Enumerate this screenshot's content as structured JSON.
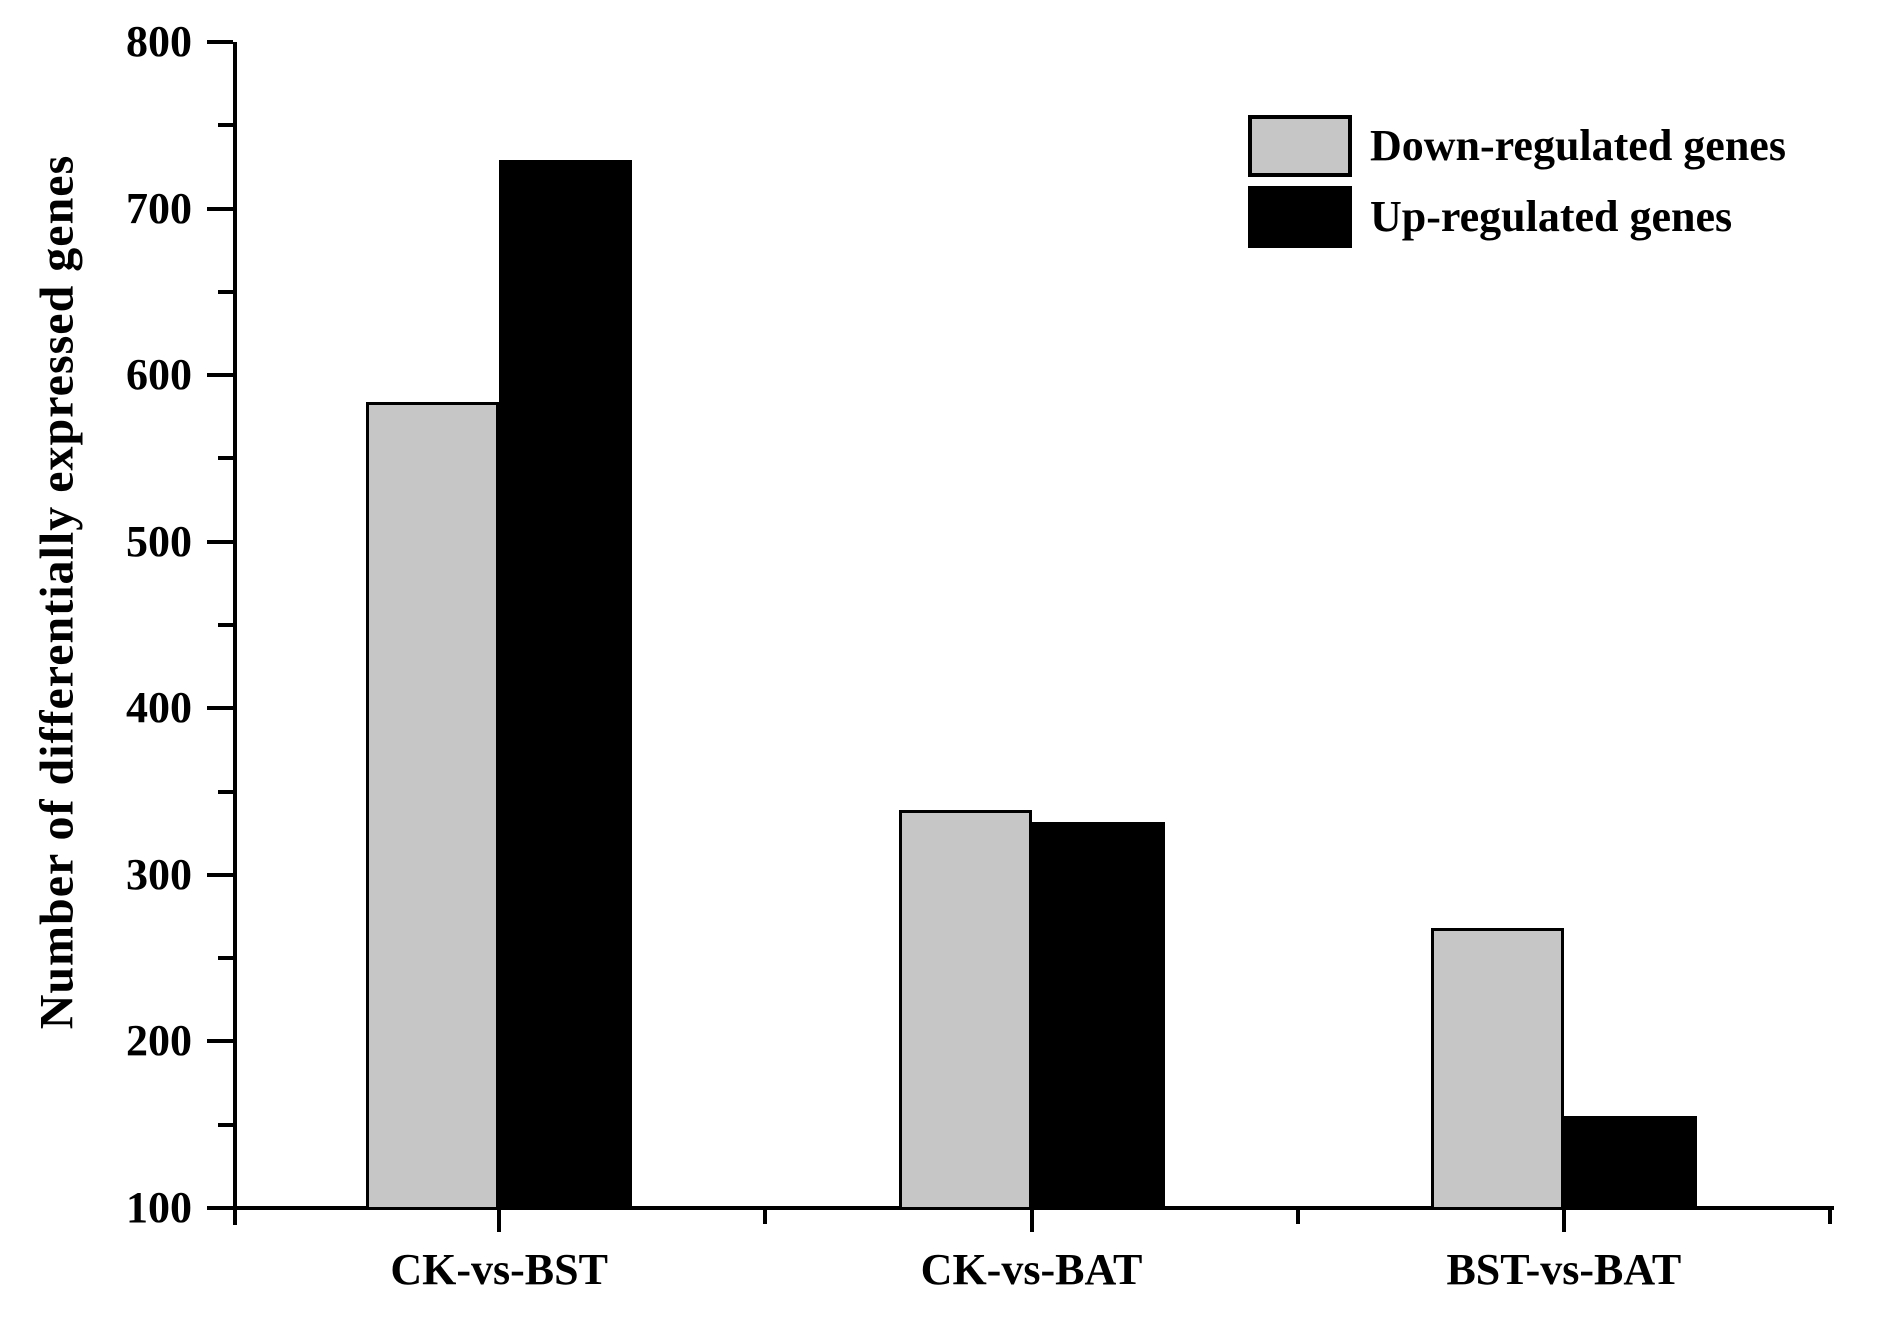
{
  "chart_data": {
    "type": "bar",
    "title": "",
    "xlabel": "",
    "ylabel": "Number of differentially expressed genes",
    "categories": [
      "CK-vs-BST",
      "CK-vs-BAT",
      "BST-vs-BAT"
    ],
    "series": [
      {
        "name": "Down-regulated genes",
        "color": "#c6c6c6",
        "values": [
          584,
          339,
          268
        ]
      },
      {
        "name": "Up-regulated genes",
        "color": "#000000",
        "values": [
          729,
          332,
          155
        ]
      }
    ],
    "ylim": [
      100,
      800
    ],
    "ytick_interval": 100,
    "ytick_minor_interval": 50,
    "yticks": [
      100,
      200,
      300,
      400,
      500,
      600,
      700,
      800
    ],
    "legend_position": "top-right",
    "grid": false,
    "bar_border_color": "#000000",
    "axis_color": "#000000",
    "background": "#ffffff"
  }
}
